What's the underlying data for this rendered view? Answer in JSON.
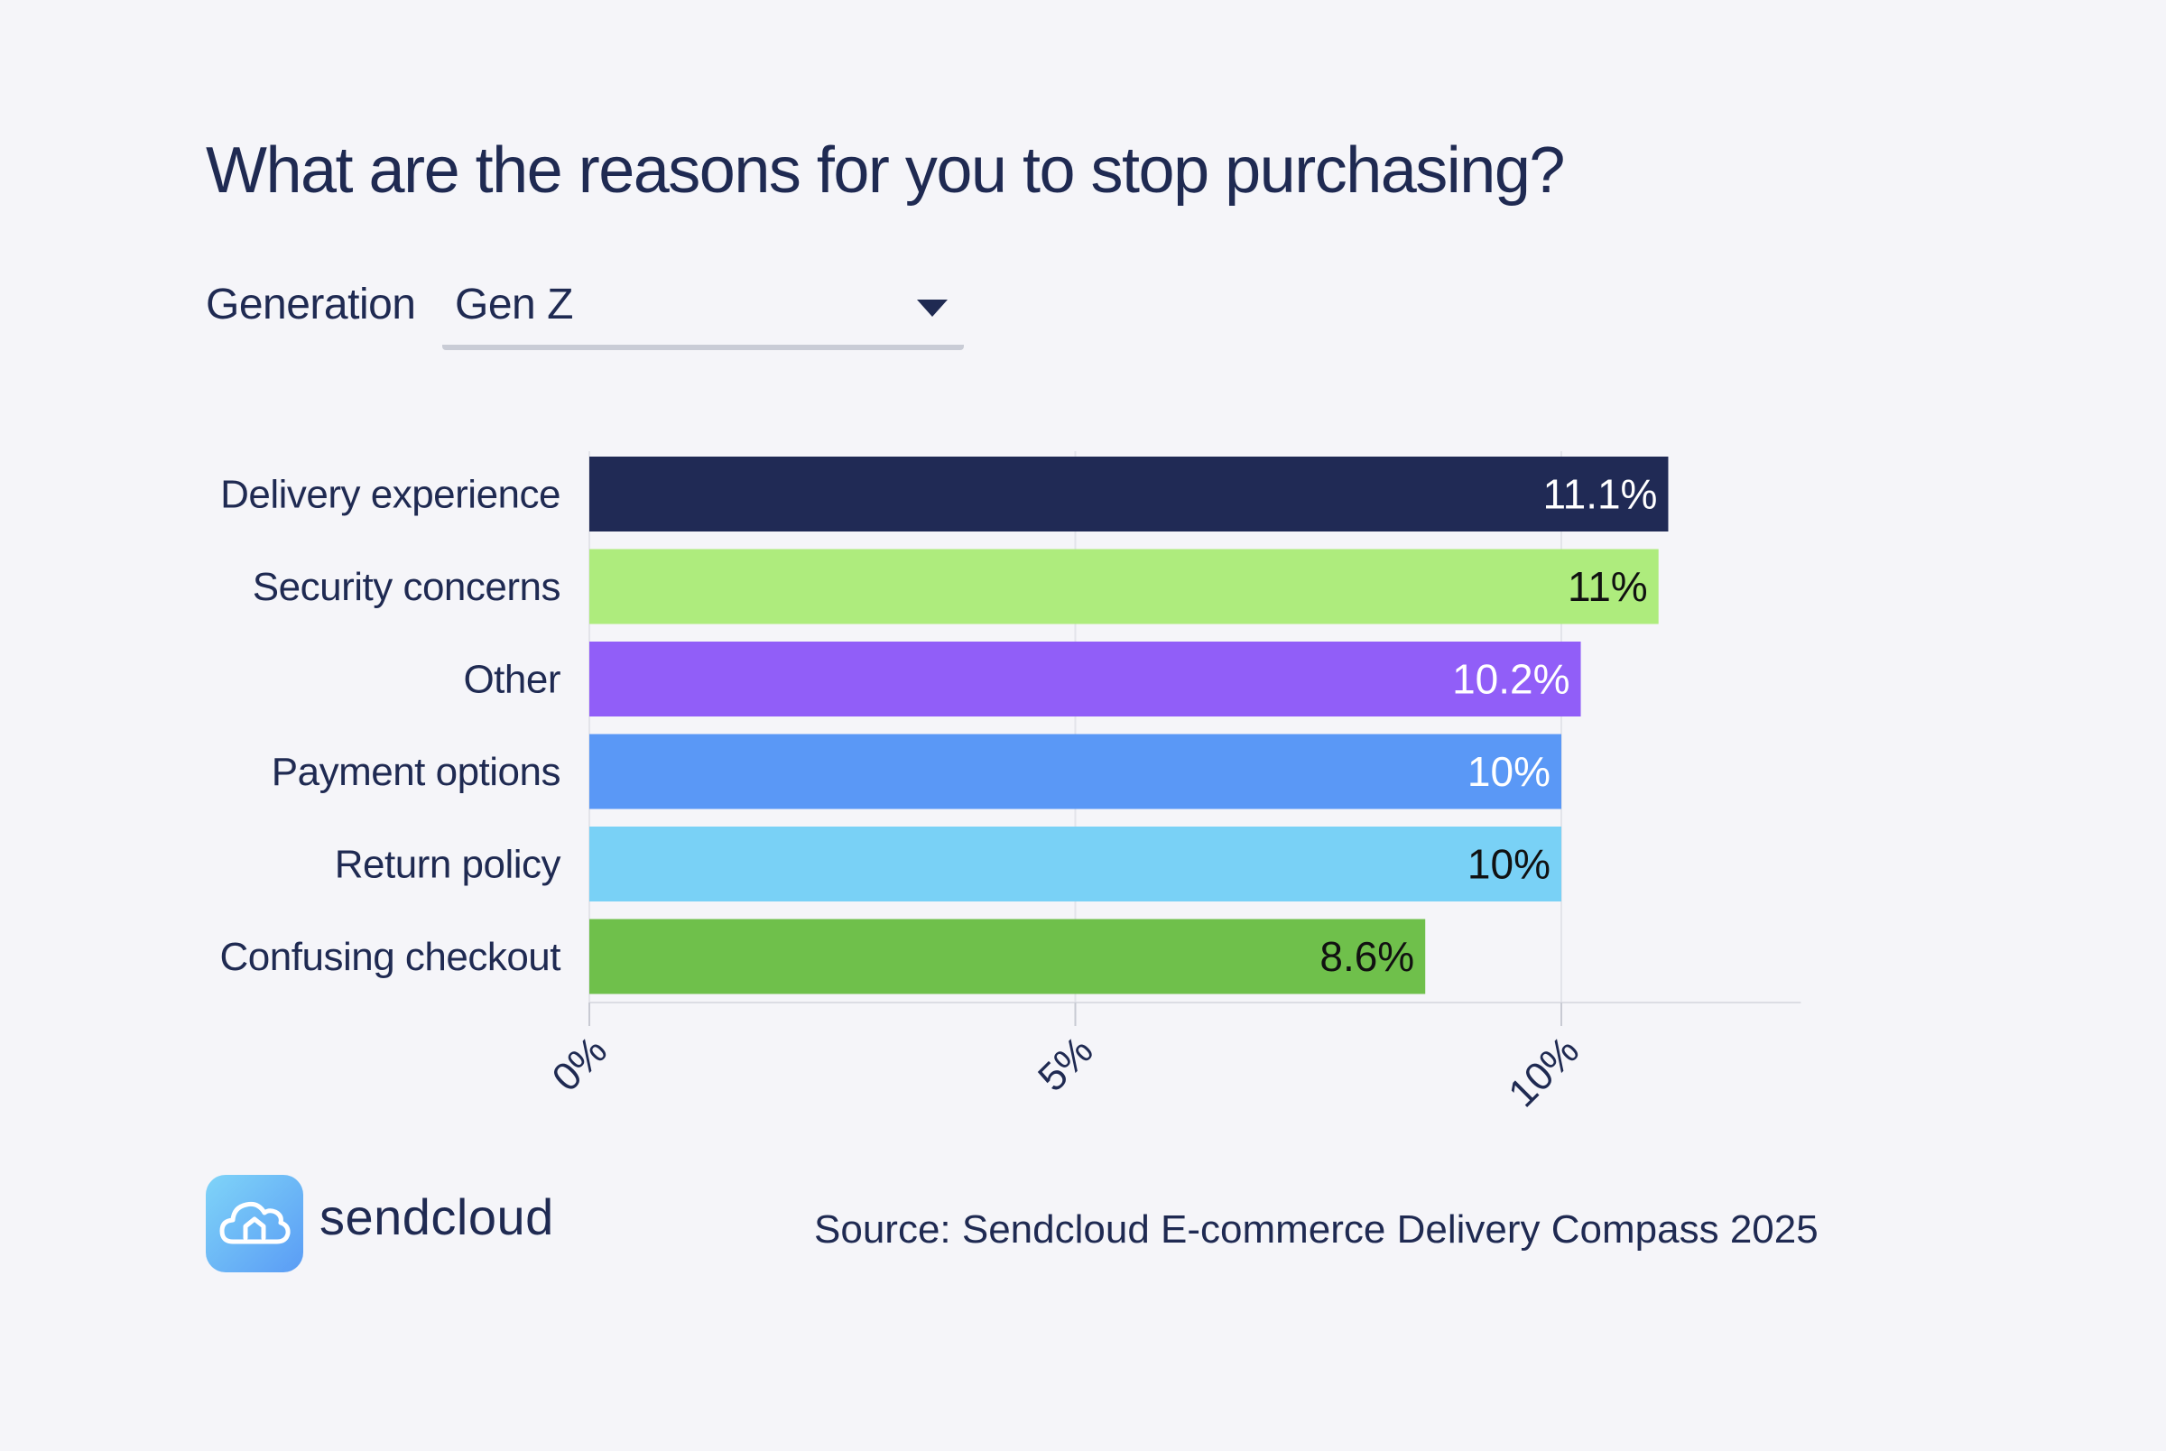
{
  "title": "What are the reasons for you to stop purchasing?",
  "filter": {
    "label": "Generation",
    "selected": "Gen Z"
  },
  "chart_data": {
    "type": "bar",
    "orientation": "horizontal",
    "categories": [
      "Delivery experience",
      "Security concerns",
      "Other",
      "Payment options",
      "Return policy",
      "Confusing checkout"
    ],
    "values": [
      11.1,
      11,
      10.2,
      10,
      10,
      8.6
    ],
    "data_labels": [
      "11.1%",
      "11%",
      "10.2%",
      "10%",
      "10%",
      "8.6%"
    ],
    "colors": [
      "#202a55",
      "#aeec7d",
      "#915ef8",
      "#5a98f6",
      "#79d1f6",
      "#6fc04b"
    ],
    "label_colors": [
      "#ffffff",
      "#111111",
      "#ffffff",
      "#ffffff",
      "#111111",
      "#111111"
    ],
    "xlim": [
      0,
      12
    ],
    "xticks": [
      0,
      5,
      10
    ],
    "xtick_labels": [
      "0%",
      "5%",
      "10%"
    ],
    "grid": true,
    "title": "What are the reasons for you to stop purchasing?",
    "xlabel": "",
    "ylabel": ""
  },
  "brand": {
    "name": "sendcloud",
    "logo_icon": "cloud-home-icon"
  },
  "source": "Source: Sendcloud E-commerce Delivery Compass 2025"
}
